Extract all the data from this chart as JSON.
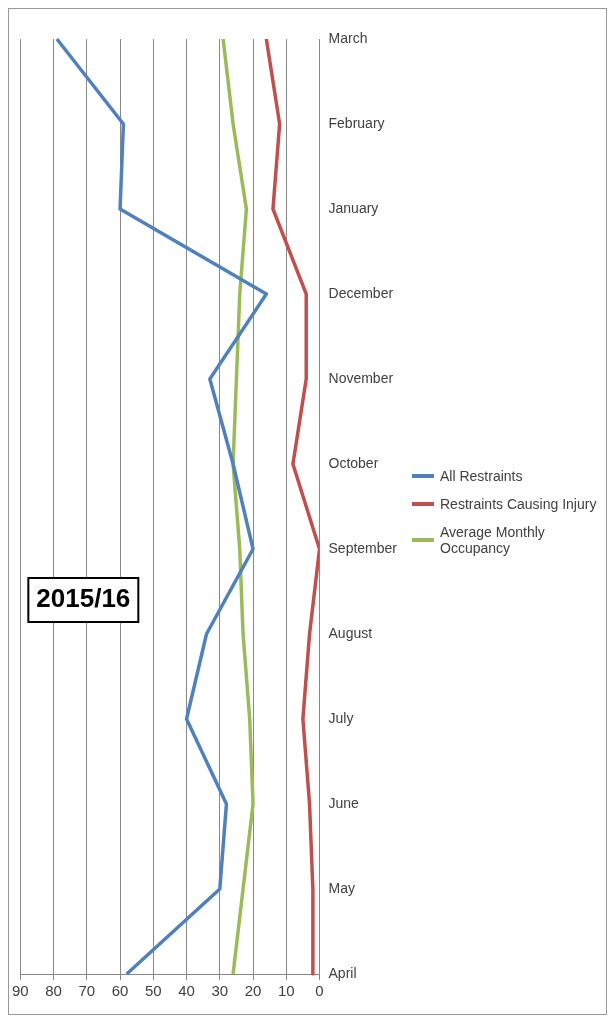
{
  "chart_data": {
    "type": "line",
    "title": "2015/16",
    "orientation": "horizontal",
    "categories": [
      "March",
      "February",
      "January",
      "December",
      "November",
      "October",
      "September",
      "August",
      "July",
      "June",
      "May",
      "April"
    ],
    "series": [
      {
        "name": "All Restraints",
        "color": "#4f81bd",
        "values": [
          79,
          59,
          60,
          16,
          33,
          26,
          20,
          34,
          40,
          28,
          30,
          58
        ]
      },
      {
        "name": "Restraints Causing Injury",
        "color": "#c0504d",
        "values": [
          16,
          12,
          14,
          4,
          4,
          8,
          0,
          3,
          5,
          3,
          2,
          2
        ]
      },
      {
        "name": "Average Monthly Occupancy",
        "color": "#9bbb59",
        "values": [
          29,
          26,
          22,
          24,
          25,
          26,
          24,
          23,
          21,
          20,
          23,
          26
        ]
      }
    ],
    "xlim": [
      90,
      0
    ],
    "xticks": [
      90,
      80,
      70,
      60,
      50,
      40,
      30,
      20,
      10,
      0
    ],
    "grid": "x",
    "legend": "right",
    "marker": "none",
    "line_style": "solid"
  }
}
